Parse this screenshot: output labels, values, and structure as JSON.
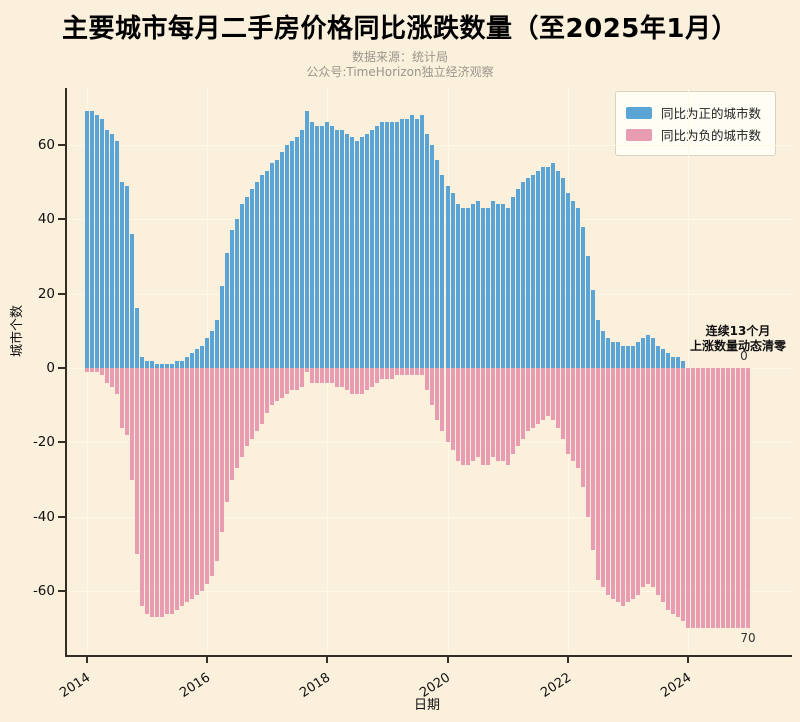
{
  "title": "主要城市每月二手房价格同比涨跌数量（至2025年1月）",
  "subtitle_line1": "数据来源：统计局",
  "subtitle_line2": "公众号:TimeHorizon独立经济观察",
  "colors": {
    "positive": "#5BA5D6",
    "negative": "#E79CB1",
    "background": "#FAF0DC",
    "grid": "#FFF8E7",
    "spine": "#332E26",
    "legend_bg": "#FFFDF4",
    "legend_border": "#D8D2C2"
  },
  "chart_data": {
    "type": "bar",
    "x_start": "2014-01",
    "x_end": "2025-01",
    "freq": "monthly",
    "title": "主要城市每月二手房价格同比涨跌数量（至2025年1月）",
    "xlabel": "日期",
    "ylabel": "城市个数",
    "ylim": [
      -75,
      75
    ],
    "yticks": [
      60,
      40,
      20,
      0,
      -20,
      -40,
      -60
    ],
    "xticks": [
      "2014",
      "2016",
      "2018",
      "2020",
      "2022",
      "2024"
    ],
    "grid": true,
    "legend_position": "top-right",
    "legend": [
      {
        "label": "同比为正的城市数",
        "color": "#5BA5D6"
      },
      {
        "label": "同比为负的城市数",
        "color": "#E79CB1"
      }
    ],
    "series": [
      {
        "name": "同比为正的城市数",
        "values": [
          69,
          69,
          68,
          67,
          64,
          63,
          61,
          50,
          49,
          36,
          16,
          3,
          2,
          2,
          1,
          1,
          1,
          1,
          2,
          2,
          3,
          4,
          5,
          6,
          8,
          10,
          13,
          22,
          31,
          37,
          40,
          44,
          46,
          48,
          50,
          52,
          53,
          55,
          56,
          58,
          60,
          61,
          62,
          64,
          69,
          66,
          65,
          65,
          66,
          65,
          64,
          64,
          63,
          62,
          61,
          62,
          63,
          64,
          65,
          66,
          66,
          66,
          66,
          67,
          67,
          68,
          67,
          68,
          63,
          60,
          56,
          52,
          49,
          47,
          44,
          43,
          43,
          44,
          45,
          43,
          43,
          45,
          44,
          44,
          43,
          46,
          48,
          50,
          51,
          52,
          53,
          54,
          54,
          55,
          53,
          51,
          47,
          45,
          43,
          38,
          30,
          21,
          13,
          10,
          8,
          7,
          7,
          6,
          6,
          6,
          7,
          8,
          9,
          8,
          6,
          5,
          4,
          3,
          3,
          2,
          0,
          0,
          0,
          0,
          0,
          0,
          0,
          0,
          0,
          0,
          0,
          0,
          0
        ]
      },
      {
        "name": "同比为负的城市数",
        "values": [
          -1,
          -1,
          -1,
          -2,
          -4,
          -5,
          -7,
          -16,
          -18,
          -30,
          -50,
          -64,
          -66,
          -67,
          -67,
          -67,
          -66,
          -66,
          -65,
          -64,
          -63,
          -62,
          -61,
          -60,
          -58,
          -56,
          -52,
          -44,
          -36,
          -30,
          -27,
          -24,
          -21,
          -19,
          -17,
          -15,
          -12,
          -10,
          -9,
          -8,
          -7,
          -6,
          -6,
          -5,
          -1,
          -4,
          -4,
          -4,
          -4,
          -4,
          -5,
          -5,
          -6,
          -7,
          -7,
          -7,
          -6,
          -5,
          -4,
          -3,
          -3,
          -3,
          -2,
          -2,
          -2,
          -2,
          -2,
          -2,
          -6,
          -10,
          -14,
          -17,
          -20,
          -22,
          -25,
          -26,
          -26,
          -25,
          -24,
          -26,
          -26,
          -24,
          -25,
          -25,
          -26,
          -23,
          -21,
          -19,
          -17,
          -16,
          -15,
          -14,
          -13,
          -14,
          -16,
          -19,
          -23,
          -25,
          -27,
          -32,
          -40,
          -49,
          -57,
          -59,
          -61,
          -62,
          -63,
          -64,
          -63,
          -62,
          -61,
          -59,
          -58,
          -59,
          -61,
          -63,
          -65,
          -66,
          -67,
          -68,
          -70,
          -70,
          -70,
          -70,
          -70,
          -70,
          -70,
          -70,
          -70,
          -70,
          -70,
          -70,
          -70
        ]
      }
    ],
    "annotation": {
      "lines": [
        "连续13个月",
        "上涨数量动态清零"
      ],
      "zero_label": "0",
      "seventy_label": "70"
    }
  }
}
